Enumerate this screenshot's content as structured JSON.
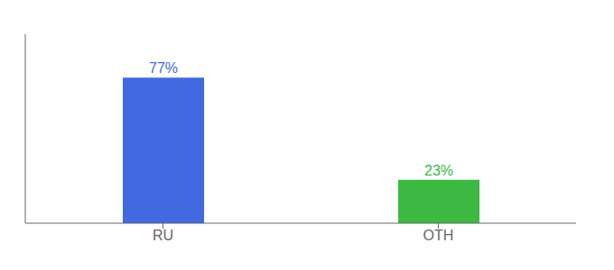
{
  "chart_data": {
    "type": "bar",
    "categories": [
      "RU",
      "OTH"
    ],
    "values": [
      77,
      23
    ],
    "value_labels": [
      "77%",
      "23%"
    ],
    "colors": [
      "#4169e1",
      "#3cb843"
    ],
    "ylim": [
      0,
      100
    ],
    "data_labels": true,
    "tick_labels": "x",
    "grid": false
  }
}
